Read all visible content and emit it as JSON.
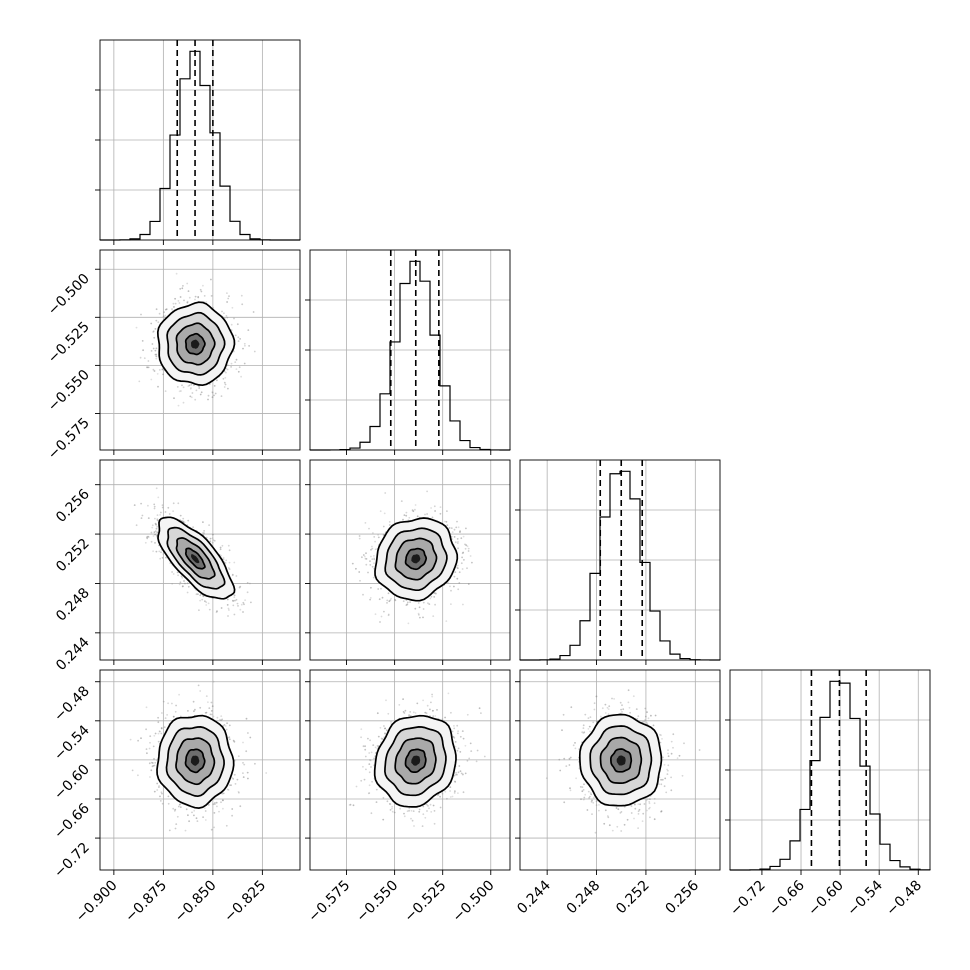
{
  "chart_data": {
    "type": "corner",
    "title": "",
    "parameters": [
      {
        "label": "",
        "mean": -0.859,
        "sd": 0.0095,
        "quantiles": [
          -0.868,
          -0.859,
          -0.85
        ],
        "range": [
          -0.907,
          -0.806
        ],
        "ticks": [
          -0.9,
          -0.875,
          -0.85,
          -0.825
        ],
        "tick_labels": [
          "−0.900",
          "−0.875",
          "−0.850",
          "−0.825"
        ]
      },
      {
        "label": "",
        "mean": -0.539,
        "sd": 0.0105,
        "quantiles": [
          -0.552,
          -0.539,
          -0.527
        ],
        "range": [
          -0.594,
          -0.49
        ],
        "ticks": [
          -0.575,
          -0.55,
          -0.525,
          -0.5
        ],
        "tick_labels": [
          "−0.575",
          "−0.550",
          "−0.525",
          "−0.500"
        ]
      },
      {
        "label": "",
        "mean": 0.25,
        "sd": 0.00165,
        "quantiles": [
          0.2483,
          0.25,
          0.2517
        ],
        "range": [
          0.2418,
          0.258
        ],
        "ticks": [
          0.244,
          0.248,
          0.252,
          0.256
        ],
        "tick_labels": [
          "0.244",
          "0.248",
          "0.252",
          "0.256"
        ]
      },
      {
        "label": "",
        "mean": -0.601,
        "sd": 0.035,
        "quantiles": [
          -0.644,
          -0.601,
          -0.56
        ],
        "range": [
          -0.769,
          -0.462
        ],
        "ticks": [
          -0.72,
          -0.66,
          -0.6,
          -0.54,
          -0.48
        ],
        "tick_labels": [
          "−0.72",
          "−0.66",
          "−0.60",
          "−0.54",
          "−0.48"
        ]
      }
    ],
    "correlations": [
      [
        1,
        0,
        -0.72,
        0
      ],
      [
        0,
        1,
        0.1,
        0.12
      ],
      [
        -0.72,
        0.1,
        1,
        0
      ],
      [
        0,
        0.12,
        0,
        1
      ]
    ],
    "histogram_bins": 20,
    "contour_levels_sigma": [
      0.5,
      1.0,
      1.5,
      2.0
    ],
    "grid": true,
    "legend": "none"
  }
}
